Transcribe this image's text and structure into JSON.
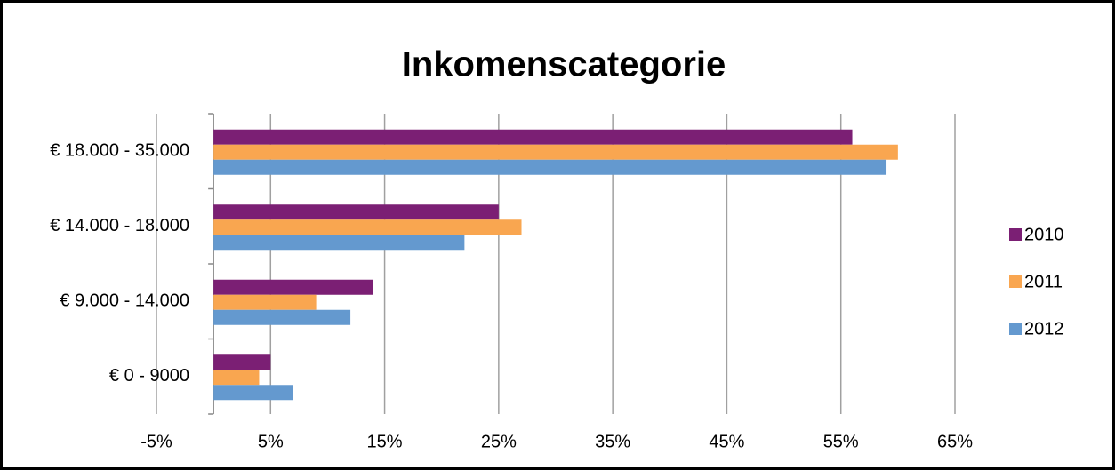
{
  "chart_data": {
    "type": "barh",
    "title": "Inkomenscategorie",
    "categories": [
      "€ 18.000 - 35.000",
      "€ 14.000 - 18.000",
      "€ 9.000 - 14.000",
      "€ 0 - 9000"
    ],
    "series": [
      {
        "name": "2010",
        "color": "#7b1f74",
        "values": [
          56,
          25,
          14,
          5
        ]
      },
      {
        "name": "2011",
        "color": "#f9a650",
        "values": [
          60,
          27,
          9,
          4
        ]
      },
      {
        "name": "2012",
        "color": "#6499cf",
        "values": [
          59,
          22,
          12,
          7
        ]
      }
    ],
    "xlim": [
      -5,
      65
    ],
    "xticks": [
      {
        "value": -5,
        "label": "-5%"
      },
      {
        "value": 5,
        "label": "5%"
      },
      {
        "value": 15,
        "label": "15%"
      },
      {
        "value": 25,
        "label": "25%"
      },
      {
        "value": 35,
        "label": "35%"
      },
      {
        "value": 45,
        "label": "45%"
      },
      {
        "value": 55,
        "label": "55%"
      },
      {
        "value": 65,
        "label": "65%"
      }
    ],
    "grid": true,
    "legend": "right"
  }
}
